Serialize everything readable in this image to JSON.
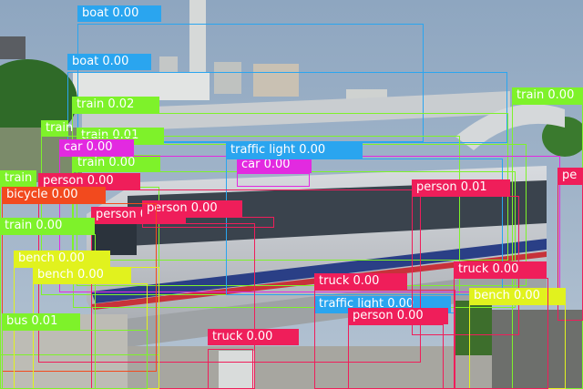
{
  "image": {
    "subject": "Elevated monorail train on a viaduct with city buildings and trees in the background, overlaid with object-detection boxes",
    "palette": {
      "sky": "#93aac2",
      "train_body": "#c9ccd0",
      "stripe": "#2a3f86",
      "foliage": "#2f6a28",
      "concrete": "#b8b6b0"
    }
  },
  "detections": [
    {
      "label": "boat 0.00",
      "color": "#2aa5ef"
    },
    {
      "label": "boat 0.00",
      "color": "#2aa5ef"
    },
    {
      "label": "train 0.02",
      "color": "#7ef22a"
    },
    {
      "label": "train 0.01",
      "color": "#7ef22a"
    },
    {
      "label": "train 0.00",
      "color": "#7ef22a"
    },
    {
      "label": "train",
      "color": "#7ef22a"
    },
    {
      "label": "train",
      "color": "#7ef22a"
    },
    {
      "label": "train 0.00",
      "color": "#7ef22a"
    },
    {
      "label": "car 0.00",
      "color": "#e22ae0"
    },
    {
      "label": "car 0.00",
      "color": "#e22ae0"
    },
    {
      "label": "traffic light 0.00",
      "color": "#2aa5ef"
    },
    {
      "label": "traffic light 0.00",
      "color": "#2aa5ef"
    },
    {
      "label": "person 0.00",
      "color": "#ef1e5a"
    },
    {
      "label": "person 0.00",
      "color": "#ef1e5a"
    },
    {
      "label": "person 0.00",
      "color": "#ef1e5a"
    },
    {
      "label": "person 0.01",
      "color": "#ef1e5a"
    },
    {
      "label": "person 0.00",
      "color": "#ef1e5a"
    },
    {
      "label": "pe",
      "color": "#ef1e5a"
    },
    {
      "label": "bicycle 0.00",
      "color": "#f24a1e"
    },
    {
      "label": "train 0.00",
      "color": "#7ef22a"
    },
    {
      "label": "bench 0.00",
      "color": "#e1f21e"
    },
    {
      "label": "bench 0.00",
      "color": "#e1f21e"
    },
    {
      "label": "bench 0.00",
      "color": "#e1f21e"
    },
    {
      "label": "bus 0.01",
      "color": "#7ef22a"
    },
    {
      "label": "truck 0.00",
      "color": "#ef1e5a"
    },
    {
      "label": "truck 0.00",
      "color": "#ef1e5a"
    },
    {
      "label": "truck 0.00",
      "color": "#ef1e5a"
    }
  ]
}
